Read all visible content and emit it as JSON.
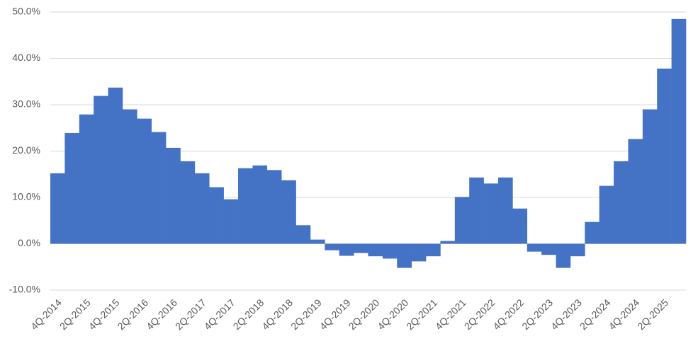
{
  "chart_data": {
    "type": "bar",
    "categories": [
      "4Q-2014",
      null,
      "2Q-2015",
      null,
      "4Q-2015",
      null,
      "2Q-2016",
      null,
      "4Q-2016",
      null,
      "2Q-2017",
      null,
      "4Q-2017",
      null,
      "2Q-2018",
      null,
      "4Q-2018",
      null,
      "2Q-2019",
      null,
      "4Q-2019",
      null,
      "2Q-2020",
      null,
      "4Q-2020",
      null,
      "2Q-2021",
      null,
      "4Q-2021",
      null,
      "2Q-2022",
      null,
      "4Q-2022",
      null,
      "2Q-2023",
      null,
      "4Q-2023",
      null,
      "2Q-2024",
      null,
      "4Q-2024",
      null,
      "2Q-2025",
      null
    ],
    "values": [
      15.2,
      23.9,
      27.9,
      31.9,
      33.7,
      29.0,
      27.0,
      24.1,
      20.7,
      17.8,
      15.2,
      12.2,
      9.6,
      16.3,
      16.9,
      15.9,
      13.7,
      4.0,
      0.9,
      -1.4,
      -2.6,
      -2.0,
      -2.7,
      -3.2,
      -5.2,
      -3.8,
      -2.7,
      0.6,
      10.1,
      14.3,
      13.0,
      14.3,
      7.6,
      -1.7,
      -2.4,
      -5.2,
      -2.7,
      4.7,
      12.5,
      17.8,
      22.6,
      29.0,
      37.8,
      48.5
    ],
    "color": "#4472c4",
    "ylim": [
      -10,
      50
    ],
    "yticks": [
      {
        "value": -10,
        "label": "-10.0%"
      },
      {
        "value": 0,
        "label": "0.0%"
      },
      {
        "value": 10,
        "label": "10.0%"
      },
      {
        "value": 20,
        "label": "20.0%"
      },
      {
        "value": 30,
        "label": "30.0%"
      },
      {
        "value": 40,
        "label": "40.0%"
      },
      {
        "value": 50,
        "label": "50.0%"
      }
    ],
    "grid": true
  }
}
